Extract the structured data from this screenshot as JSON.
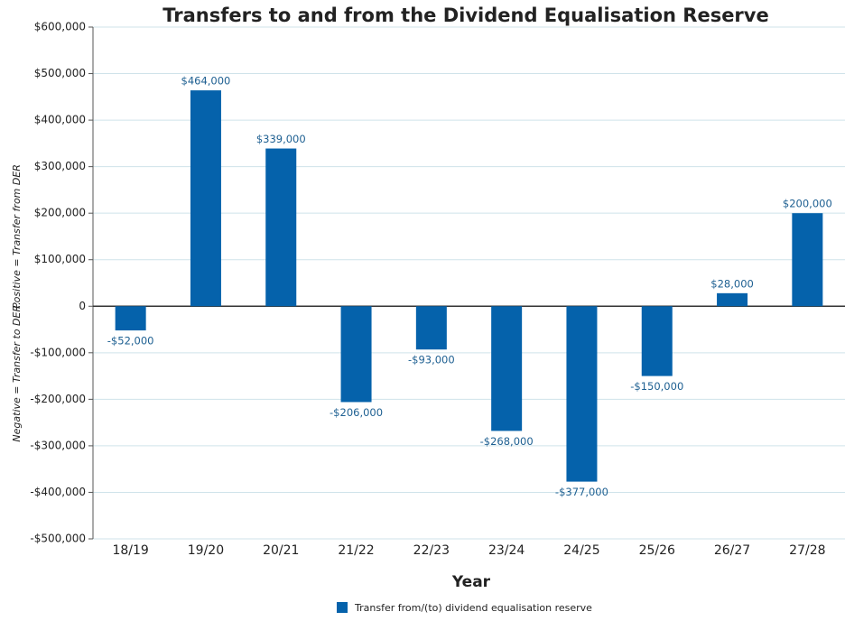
{
  "chart_data": {
    "type": "bar",
    "title": "Transfers to and from the Dividend Equalisation Reserve",
    "x_label": "Year",
    "y_label_negative": "Negative = Transfer to DER.",
    "y_label_positive": "Positive = Transfer from DER",
    "categories": [
      "18/19",
      "19/20",
      "20/21",
      "21/22",
      "22/23",
      "23/24",
      "24/25",
      "25/26",
      "26/27",
      "27/28"
    ],
    "series": [
      {
        "name": "Transfer from/(to) dividend equalisation reserve",
        "color": "#0562ab",
        "values": [
          -52000,
          464000,
          339000,
          -206000,
          -93000,
          -268000,
          -377000,
          -150000,
          28000,
          200000
        ],
        "value_labels": [
          "-$52,000",
          "$464,000",
          "$339,000",
          "-$206,000",
          "-$93,000",
          "-$268,000",
          "-$377,000",
          "-$150,000",
          "$28,000",
          "$200,000"
        ]
      }
    ],
    "ylim": [
      -500000,
      600000
    ],
    "yticks": [
      {
        "value": -500000,
        "label": "-$500,000"
      },
      {
        "value": -400000,
        "label": "-$400,000"
      },
      {
        "value": -300000,
        "label": "-$300,000"
      },
      {
        "value": -200000,
        "label": "-$200,000"
      },
      {
        "value": -100000,
        "label": "-$100,000"
      },
      0,
      {
        "value": 100000,
        "label": "$100,000"
      },
      {
        "value": 200000,
        "label": "$200,000"
      },
      {
        "value": 300000,
        "label": "$300,000"
      },
      {
        "value": 400000,
        "label": "$400,000"
      },
      {
        "value": 500000,
        "label": "$500,000"
      },
      {
        "value": 600000,
        "label": "$600,000"
      }
    ],
    "grid": true,
    "legend": "bottom"
  }
}
